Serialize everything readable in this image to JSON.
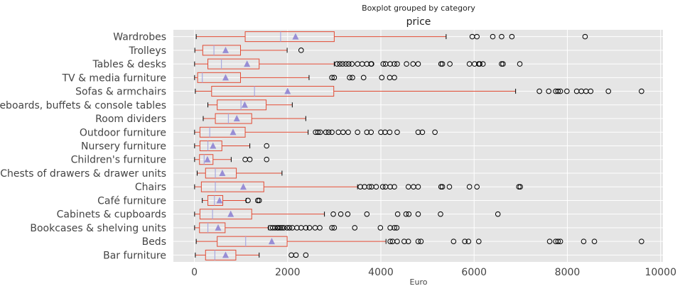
{
  "chart_data": {
    "type": "boxplot",
    "suptitle": "Boxplot grouped by category",
    "title": "price",
    "xlabel": "Euro",
    "xlim": [
      -450,
      10050
    ],
    "xticks": [
      0,
      2000,
      4000,
      6000,
      8000,
      10000
    ],
    "grid": true,
    "colors": {
      "background": "#e5e5e5",
      "grid": "#ffffff",
      "box": "#e24a33",
      "median": "#a9a9e0",
      "mean": "#988ed5",
      "flier": "#000000"
    },
    "categories": [
      "Wardrobes",
      "Trolleys",
      "Tables & desks",
      "TV & media furniture",
      "Sofas & armchairs",
      "Sideboards, buffets & console tables",
      "Room dividers",
      "Outdoor furniture",
      "Nursery furniture",
      "Children's furniture",
      "Chests of drawers & drawer units",
      "Chairs",
      "Café furniture",
      "Cabinets & cupboards",
      "Bookcases & shelving units",
      "Beds",
      "Bar furniture"
    ],
    "boxes": [
      {
        "whislo": 40,
        "q1": 1090,
        "med": 1850,
        "q3": 3000,
        "whishi": 5400,
        "mean": 2170,
        "fliers": [
          5960,
          6060,
          6400,
          6590,
          6810,
          8380
        ]
      },
      {
        "whislo": 10,
        "q1": 180,
        "med": 420,
        "q3": 990,
        "whishi": 1990,
        "mean": 670,
        "fliers": [
          2290
        ]
      },
      {
        "whislo": 5,
        "q1": 290,
        "med": 580,
        "q3": 1390,
        "whishi": 3000,
        "mean": 1130,
        "fliers": [
          3060,
          3120,
          3180,
          3250,
          3310,
          3380,
          3500,
          3600,
          3700,
          3790,
          3800,
          4050,
          4100,
          4200,
          4290,
          4350,
          4550,
          4690,
          4800,
          5290,
          5320,
          5480,
          5900,
          6010,
          6100,
          6120,
          6190,
          6590,
          6620,
          6980
        ]
      },
      {
        "whislo": 5,
        "q1": 70,
        "med": 170,
        "q3": 990,
        "whishi": 2460,
        "mean": 670,
        "fliers": [
          2950,
          3000,
          3330,
          3390,
          3630,
          4020,
          4190,
          4290
        ]
      },
      {
        "whislo": 20,
        "q1": 370,
        "med": 1290,
        "q3": 2990,
        "whishi": 6890,
        "mean": 2000,
        "fliers": [
          7400,
          7600,
          7750,
          7800,
          7850,
          7990,
          8200,
          8300,
          8400,
          8500,
          8880,
          9590
        ]
      },
      {
        "whislo": 290,
        "q1": 490,
        "med": 1000,
        "q3": 1540,
        "whishi": 2100,
        "mean": 1080,
        "fliers": []
      },
      {
        "whislo": 190,
        "q1": 450,
        "med": 730,
        "q3": 1230,
        "whishi": 2390,
        "mean": 910,
        "fliers": []
      },
      {
        "whislo": 5,
        "q1": 120,
        "med": 330,
        "q3": 1090,
        "whishi": 2440,
        "mean": 830,
        "fliers": [
          2600,
          2650,
          2700,
          2820,
          2880,
          2950,
          3090,
          3190,
          3300,
          3500,
          3700,
          3790,
          4000,
          4090,
          4190,
          4350,
          4800,
          4890,
          5160
        ]
      },
      {
        "whislo": 5,
        "q1": 120,
        "med": 290,
        "q3": 590,
        "whishi": 1190,
        "mean": 400,
        "fliers": [
          1550
        ]
      },
      {
        "whislo": 5,
        "q1": 110,
        "med": 210,
        "q3": 400,
        "whishi": 790,
        "mean": 280,
        "fliers": [
          1090,
          1190,
          1550
        ]
      },
      {
        "whislo": 60,
        "q1": 240,
        "med": 450,
        "q3": 900,
        "whishi": 1880,
        "mean": 600,
        "fliers": []
      },
      {
        "whislo": 5,
        "q1": 150,
        "med": 450,
        "q3": 1490,
        "whishi": 3500,
        "mean": 1050,
        "fliers": [
          3560,
          3650,
          3750,
          3800,
          3900,
          4040,
          4100,
          4200,
          4290,
          4590,
          4700,
          4800,
          5290,
          5320,
          5470,
          5900,
          6060,
          6960,
          6990
        ]
      },
      {
        "whislo": 170,
        "q1": 290,
        "med": 430,
        "q3": 610,
        "whishi": 1110,
        "mean": 540,
        "fliers": [
          1150,
          1360,
          1390
        ]
      },
      {
        "whislo": 5,
        "q1": 120,
        "med": 390,
        "q3": 1230,
        "whishi": 2790,
        "mean": 780,
        "fliers": [
          2980,
          3140,
          3290,
          3700,
          4360,
          4540,
          4600,
          4800,
          5280,
          6510
        ]
      },
      {
        "whislo": 5,
        "q1": 110,
        "med": 290,
        "q3": 660,
        "whishi": 1590,
        "mean": 510,
        "fliers": [
          1630,
          1680,
          1730,
          1780,
          1800,
          1840,
          1880,
          1920,
          1990,
          2040,
          2100,
          2200,
          2290,
          2390,
          2470,
          2590,
          2690,
          2950,
          3000,
          3440,
          3990,
          4200,
          4290,
          4340
        ]
      },
      {
        "whislo": 40,
        "q1": 490,
        "med": 1100,
        "q3": 1990,
        "whishi": 4110,
        "mean": 1660,
        "fliers": [
          4200,
          4250,
          4350,
          4500,
          4590,
          4800,
          4860,
          5560,
          5800,
          5880,
          6100,
          7620,
          7750,
          7800,
          7850,
          8350,
          8580,
          9590
        ]
      },
      {
        "whislo": 20,
        "q1": 240,
        "med": 440,
        "q3": 890,
        "whishi": 1390,
        "mean": 670,
        "fliers": [
          2080,
          2180,
          2390
        ]
      }
    ]
  }
}
